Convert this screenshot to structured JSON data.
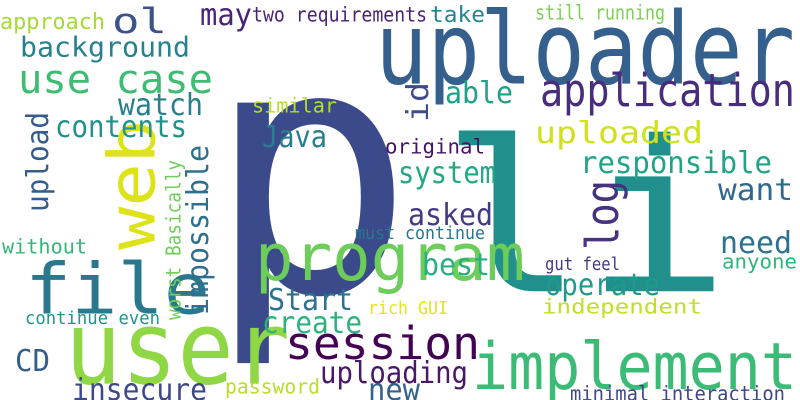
{
  "words": [
    {
      "text": "p",
      "color": "#3b4a8a"
    },
    {
      "text": "li",
      "color": "#21908c"
    },
    {
      "text": "uploader",
      "color": "#355f8d"
    },
    {
      "text": "user",
      "color": "#8fd744"
    },
    {
      "text": "program",
      "color": "#6ccd5a"
    },
    {
      "text": "implement",
      "color": "#3bbb75"
    },
    {
      "text": "file",
      "color": "#2a788e"
    },
    {
      "text": "web",
      "color": "#dde318"
    },
    {
      "text": "application",
      "color": "#472d7b"
    },
    {
      "text": "session",
      "color": "#440154"
    },
    {
      "text": "use case",
      "color": "#3fbc73"
    },
    {
      "text": "ol",
      "color": "#3b528b"
    },
    {
      "text": "background",
      "color": "#26828e"
    },
    {
      "text": "uploaded",
      "color": "#d0e11c"
    },
    {
      "text": "responsible",
      "color": "#20a386"
    },
    {
      "text": "log",
      "color": "#46327e"
    },
    {
      "text": "want",
      "color": "#31688e"
    },
    {
      "text": "need",
      "color": "#2c728e"
    },
    {
      "text": "system",
      "color": "#22a884"
    },
    {
      "text": "asked",
      "color": "#443983"
    },
    {
      "text": "best",
      "color": "#28ae80"
    },
    {
      "text": "operate",
      "color": "#1f9a8a"
    },
    {
      "text": "create",
      "color": "#2db27d"
    },
    {
      "text": "Start",
      "color": "#2d718e"
    },
    {
      "text": "uploading",
      "color": "#48186a"
    },
    {
      "text": "insecure",
      "color": "#3e4989"
    },
    {
      "text": "new",
      "color": "#33638d"
    },
    {
      "text": "Java",
      "color": "#287d8e"
    },
    {
      "text": "contents",
      "color": "#21918c"
    },
    {
      "text": "watch",
      "color": "#277f8e"
    },
    {
      "text": "may",
      "color": "#482576"
    },
    {
      "text": "able",
      "color": "#1fa088"
    },
    {
      "text": "id",
      "color": "#3d4d8a"
    },
    {
      "text": "impossible",
      "color": "#2e6f8e"
    },
    {
      "text": "upload",
      "color": "#365c8d"
    },
    {
      "text": "CD",
      "color": "#355e8d"
    },
    {
      "text": "approach",
      "color": "#a5db36"
    },
    {
      "text": "two requirements",
      "color": "#482475"
    },
    {
      "text": "take",
      "color": "#25858e"
    },
    {
      "text": "still running",
      "color": "#7ad151"
    },
    {
      "text": "similar",
      "color": "#b5de2b"
    },
    {
      "text": "original",
      "color": "#471365"
    },
    {
      "text": "must continue",
      "color": "#2a768e"
    },
    {
      "text": "without",
      "color": "#34b679"
    },
    {
      "text": "worst Basically",
      "color": "#6ece58"
    },
    {
      "text": "continue even",
      "color": "#1f958b"
    },
    {
      "text": "rich GUI",
      "color": "#e5e419"
    },
    {
      "text": "gut feel",
      "color": "#453882"
    },
    {
      "text": "anyone",
      "color": "#31b57b"
    },
    {
      "text": "independent",
      "color": "#c2df23"
    },
    {
      "text": "password",
      "color": "#b8de29"
    },
    {
      "text": "minimal interaction",
      "color": "#3f4788"
    }
  ]
}
